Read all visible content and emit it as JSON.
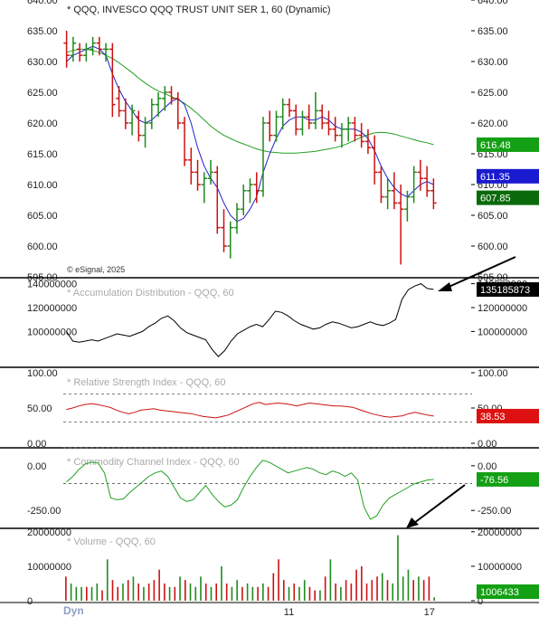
{
  "header": {
    "title": "* QQQ, INVESCO QQQ TRUST UNIT SER 1, 60 (Dynamic)",
    "copyright": "© eSignal, 2025"
  },
  "colors": {
    "up": "#1f8a1f",
    "down": "#cc1111",
    "ma_fast": "#2222cc",
    "ma_slow": "#22a022",
    "ad_line": "#000000",
    "rsi_line": "#cc1111",
    "cci_line": "#22a022",
    "volume_up": "#1f8a1f",
    "volume_down": "#cc1111",
    "label_green": "#14a014",
    "label_blue": "#1a1ad0",
    "label_darkgreen": "#0a6a0a",
    "label_black": "#000000",
    "label_red": "#dd1111",
    "arrow": "#000000"
  },
  "chart_data": [
    {
      "type": "candlestick",
      "title": "* QQQ, INVESCO QQQ TRUST UNIT SER 1, 60 (Dynamic)",
      "ylim": [
        595,
        640
      ],
      "yticks": [
        "640.00",
        "635.00",
        "630.00",
        "625.00",
        "620.00",
        "615.00",
        "610.00",
        "605.00",
        "600.00",
        "595.00"
      ],
      "xticks": [
        {
          "label": "11",
          "index": 48
        },
        {
          "label": "17",
          "index": 78
        }
      ],
      "ohlc": [
        [
          633,
          635,
          629,
          631
        ],
        [
          631,
          634,
          630,
          633
        ],
        [
          632,
          633,
          630,
          631
        ],
        [
          631,
          633,
          630,
          632
        ],
        [
          632,
          634,
          631,
          633
        ],
        [
          633,
          634,
          631,
          632
        ],
        [
          632,
          633,
          630,
          632
        ],
        [
          632,
          633,
          621,
          623
        ],
        [
          624,
          626,
          621,
          622
        ],
        [
          622,
          624,
          619,
          620
        ],
        [
          620,
          623,
          618,
          622
        ],
        [
          621,
          622,
          617,
          618
        ],
        [
          618,
          621,
          616,
          620
        ],
        [
          620,
          624,
          619,
          623
        ],
        [
          623,
          625,
          621,
          624
        ],
        [
          624,
          626,
          622,
          625
        ],
        [
          625,
          626,
          623,
          624
        ],
        [
          624,
          625,
          619,
          620
        ],
        [
          620,
          621,
          613,
          614
        ],
        [
          614,
          616,
          610,
          612
        ],
        [
          612,
          614,
          609,
          610
        ],
        [
          610,
          612,
          607,
          611
        ],
        [
          611,
          614,
          610,
          612
        ],
        [
          612,
          613,
          602,
          603
        ],
        [
          603,
          606,
          599,
          600
        ],
        [
          600,
          604,
          598,
          603
        ],
        [
          603,
          607,
          602,
          606
        ],
        [
          606,
          610,
          605,
          609
        ],
        [
          609,
          611,
          607,
          610
        ],
        [
          610,
          612,
          607,
          609
        ],
        [
          609,
          621,
          608,
          620
        ],
        [
          620,
          622,
          617,
          618
        ],
        [
          618,
          622,
          617,
          621
        ],
        [
          621,
          624,
          619,
          623
        ],
        [
          623,
          624,
          621,
          622
        ],
        [
          622,
          623,
          618,
          619
        ],
        [
          619,
          622,
          618,
          621
        ],
        [
          621,
          623,
          619,
          620
        ],
        [
          620,
          625,
          619,
          622
        ],
        [
          622,
          623,
          619,
          620
        ],
        [
          620,
          622,
          618,
          619
        ],
        [
          619,
          621,
          617,
          618
        ],
        [
          618,
          620,
          616,
          619
        ],
        [
          619,
          621,
          617,
          620
        ],
        [
          620,
          621,
          617,
          618
        ],
        [
          618,
          620,
          616,
          617
        ],
        [
          617,
          619,
          615,
          616
        ],
        [
          616,
          618,
          610,
          612
        ],
        [
          612,
          613,
          607,
          608
        ],
        [
          608,
          611,
          606,
          609
        ],
        [
          609,
          612,
          606,
          607
        ],
        [
          607,
          610,
          597,
          606
        ],
        [
          606,
          609,
          604,
          608
        ],
        [
          608,
          613,
          607,
          612
        ],
        [
          612,
          614,
          609,
          611
        ],
        [
          611,
          613,
          608,
          609
        ],
        [
          609,
          611,
          606,
          607
        ]
      ],
      "ma_fast": [
        630,
        631,
        631.5,
        632,
        632.5,
        632,
        631,
        628,
        625.5,
        623.5,
        622,
        620.5,
        620,
        620.5,
        621.5,
        622.5,
        623.5,
        624,
        623,
        620,
        616,
        613,
        611,
        609.5,
        607,
        605,
        604,
        604.5,
        606,
        608,
        612,
        615,
        617.5,
        619.5,
        620.5,
        621,
        621,
        620.5,
        620.5,
        621,
        620.5,
        619.5,
        619,
        619,
        619,
        618.5,
        617.5,
        615.5,
        613,
        611,
        609.5,
        608.5,
        608,
        609,
        610,
        610.5,
        610
      ],
      "ma_slow": [
        631.5,
        631.8,
        632,
        632,
        631.8,
        631.5,
        631,
        630.5,
        629.8,
        629,
        628.2,
        627.3,
        626.5,
        625.8,
        625.2,
        624.8,
        624.3,
        623.8,
        623.2,
        622.4,
        621.5,
        620.5,
        619.5,
        618.7,
        618,
        617.5,
        617,
        616.6,
        616.2,
        615.8,
        615.5,
        615.3,
        615.2,
        615.1,
        615.1,
        615.1,
        615.2,
        615.3,
        615.4,
        615.6,
        615.8,
        616,
        616.3,
        616.7,
        617.2,
        617.7,
        618.1,
        618.4,
        618.5,
        618.4,
        618.2,
        617.9,
        617.6,
        617.3,
        617,
        616.8,
        616.48
      ],
      "labels": [
        {
          "text": "616.48",
          "value": 616.48,
          "color": "#14a014"
        },
        {
          "text": "611.35",
          "value": 611.35,
          "color": "#1a1ad0"
        },
        {
          "text": "607.85",
          "value": 607.85,
          "color": "#0a6a0a"
        }
      ]
    },
    {
      "type": "line",
      "title": "* Accumulation Distribution - QQQ, 60",
      "ylim": [
        70000000,
        145000000
      ],
      "yticks": [
        "140000000",
        "120000000",
        "100000000"
      ],
      "values": [
        100,
        92,
        91,
        92,
        93,
        92,
        94,
        96,
        98,
        97,
        96,
        98,
        100,
        104,
        107,
        111,
        113,
        109,
        103,
        99,
        97,
        95,
        93,
        85,
        79,
        84,
        92,
        98,
        101,
        104,
        106,
        104,
        110,
        117,
        116,
        113,
        109,
        106,
        104,
        102,
        103,
        106,
        108,
        107,
        105,
        103,
        104,
        106,
        108,
        106,
        105,
        107,
        110,
        127,
        135,
        138,
        140,
        136,
        135.19
      ],
      "value_scale": 1000000,
      "label": {
        "text": "135185873",
        "value": 135185873,
        "color": "#000000"
      }
    },
    {
      "type": "line",
      "title": "* Relative Strength Index - QQQ, 60",
      "ylim": [
        0,
        100
      ],
      "yticks": [
        "100.00",
        "50.00",
        "0.00"
      ],
      "overbought": 70,
      "oversold": 30,
      "values": [
        48,
        50,
        53,
        55,
        56,
        55,
        53,
        51,
        47,
        44,
        42,
        44,
        47,
        48,
        49,
        47,
        46,
        45,
        44,
        43,
        42,
        40,
        38,
        37,
        36,
        38,
        40,
        44,
        48,
        52,
        56,
        58,
        55,
        56,
        57,
        56,
        55,
        53,
        55,
        57,
        56,
        55,
        54,
        53,
        53,
        52,
        51,
        48,
        45,
        42,
        40,
        38,
        37,
        38,
        39,
        42,
        44,
        42,
        40,
        38.53
      ],
      "label": {
        "text": "38.53",
        "value": 38.53,
        "color": "#dd1111"
      }
    },
    {
      "type": "line",
      "title": "* Commodity Channel Index - QQQ, 60",
      "ylim": [
        -350,
        100
      ],
      "yticks": [
        "0.00",
        "-250.00"
      ],
      "overbought": 100,
      "oversold": -100,
      "values": [
        -90,
        -60,
        -20,
        10,
        20,
        15,
        -40,
        -180,
        -190,
        -185,
        -150,
        -120,
        -90,
        -60,
        -40,
        -30,
        -60,
        -120,
        -180,
        -200,
        -190,
        -150,
        -110,
        -160,
        -200,
        -230,
        -220,
        -190,
        -120,
        -60,
        -10,
        30,
        20,
        0,
        -20,
        -40,
        -30,
        -20,
        -10,
        -20,
        -40,
        -50,
        -30,
        -40,
        -60,
        -40,
        -80,
        -230,
        -300,
        -280,
        -220,
        -180,
        -160,
        -140,
        -120,
        -100,
        -90,
        -80,
        -76.56
      ],
      "label": {
        "text": "-76.56",
        "value": -76.56,
        "color": "#14a014"
      }
    },
    {
      "type": "bar",
      "title": "* Volume - QQQ, 60",
      "ylim": [
        0,
        21000000
      ],
      "yticks": [
        "20000000",
        "10000000",
        "0"
      ],
      "values": [
        7,
        5,
        4,
        4,
        4,
        4,
        5,
        3,
        12,
        6,
        4,
        5,
        6,
        7,
        5,
        4,
        5,
        6,
        9,
        5,
        4,
        4,
        7,
        6,
        5,
        4,
        7,
        5,
        4,
        5,
        10,
        5,
        4,
        6,
        4,
        5,
        4,
        4,
        5,
        4,
        8,
        12,
        6,
        4,
        5,
        4,
        6,
        4,
        3,
        3,
        7,
        12,
        5,
        4,
        6,
        5,
        9,
        10,
        5,
        6,
        7,
        8,
        6,
        5,
        19,
        7,
        9,
        6,
        7,
        6,
        7,
        1
      ],
      "up": [
        0,
        1,
        1,
        1,
        0,
        1,
        1,
        0,
        1,
        0,
        0,
        1,
        0,
        1,
        0,
        1,
        0,
        0,
        0,
        0,
        1,
        0,
        1,
        0,
        1,
        1,
        1,
        0,
        1,
        0,
        1,
        0,
        1,
        1,
        0,
        1,
        1,
        0,
        1,
        0,
        0,
        0,
        0,
        1,
        0,
        1,
        1,
        0,
        0,
        1,
        0,
        1,
        0,
        1,
        0,
        0,
        0,
        0,
        0,
        0,
        0,
        1,
        0,
        1,
        1,
        1,
        1,
        0,
        1,
        0,
        0,
        1
      ],
      "value_scale": 1000000,
      "label": {
        "text": "1006433",
        "value": 1006433,
        "color": "#14a014"
      }
    }
  ],
  "footer": {
    "dyn_label": "Dyn"
  }
}
